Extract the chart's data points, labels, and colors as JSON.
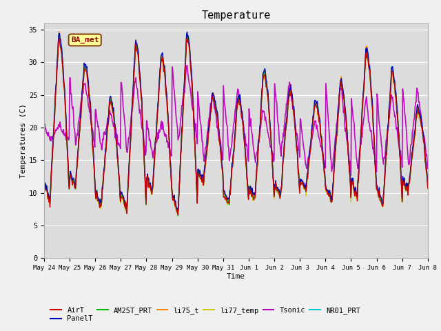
{
  "title": "Temperature",
  "xlabel": "Time",
  "ylabel": "Temperatures (C)",
  "ylim": [
    0,
    36
  ],
  "yticks": [
    0,
    5,
    10,
    15,
    20,
    25,
    30,
    35
  ],
  "date_labels": [
    "May 24",
    "May 25",
    "May 26",
    "May 27",
    "May 28",
    "May 29",
    "May 30",
    "May 31",
    "Jun 1",
    "Jun 2",
    "Jun 3",
    "Jun 4",
    "Jun 5",
    "Jun 6",
    "Jun 7",
    "Jun 8"
  ],
  "annotation_text": "BA_met",
  "series": {
    "AirT": {
      "color": "#cc0000",
      "lw": 1.0
    },
    "PanelT": {
      "color": "#0000bb",
      "lw": 1.0
    },
    "AM25T_PRT": {
      "color": "#00bb00",
      "lw": 1.0
    },
    "li75_t": {
      "color": "#ff8800",
      "lw": 1.0
    },
    "li77_temp": {
      "color": "#cccc00",
      "lw": 1.0
    },
    "Tsonic": {
      "color": "#bb00bb",
      "lw": 1.2
    },
    "NR01_PRT": {
      "color": "#00cccc",
      "lw": 1.0
    }
  },
  "title_fontsize": 11
}
